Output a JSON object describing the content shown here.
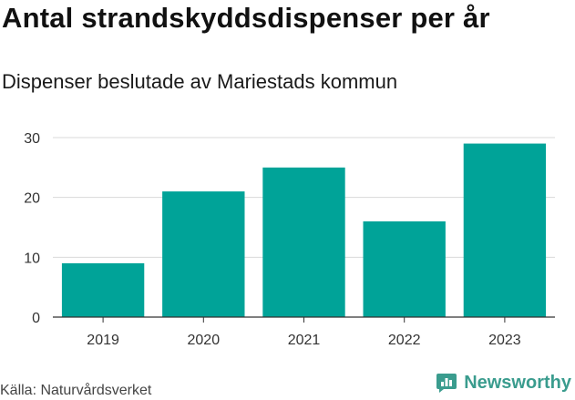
{
  "title": "Antal strandskyddsdispenser per år",
  "subtitle": "Dispenser beslutade av Mariestads kommun",
  "source": "Källa: Naturvårdsverket",
  "brand": {
    "name": "Newsworthy",
    "icon": "bar-chart-logo-icon"
  },
  "colors": {
    "bar": "#00a398",
    "grid": "#d9d9d9",
    "axis": "#333333",
    "brand": "#3a9c8e"
  },
  "chart_data": {
    "type": "bar",
    "title": "Antal strandskyddsdispenser per år",
    "subtitle": "Dispenser beslutade av Mariestads kommun",
    "categories": [
      "2019",
      "2020",
      "2021",
      "2022",
      "2023"
    ],
    "values": [
      9,
      21,
      25,
      16,
      29
    ],
    "ylim": [
      0,
      30
    ],
    "yticks": [
      0,
      10,
      20,
      30
    ],
    "xlabel": "",
    "ylabel": "",
    "grid": true,
    "legend": "none"
  }
}
